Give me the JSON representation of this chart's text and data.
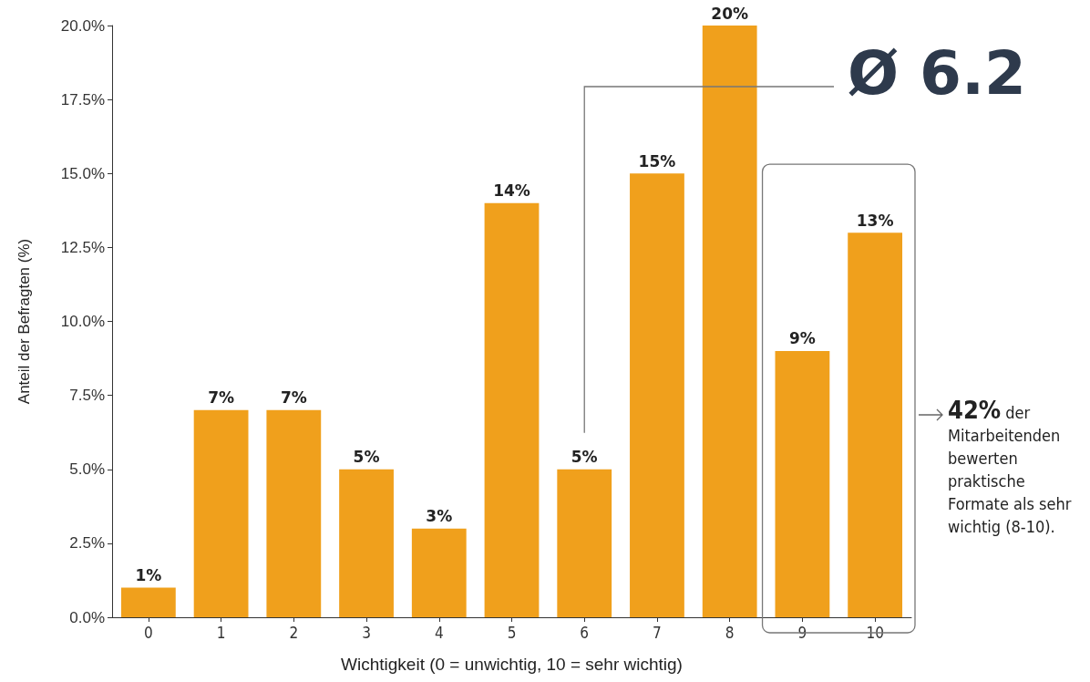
{
  "chart_data": {
    "type": "bar",
    "xlabel": "Wichtigkeit (0 = unwichtig, 10 = sehr wichtig)",
    "ylabel": "Anteil der Befragten (%)",
    "categories": [
      "0",
      "1",
      "2",
      "3",
      "4",
      "5",
      "6",
      "7",
      "8",
      "9",
      "10"
    ],
    "values": [
      1,
      7,
      7,
      5,
      3,
      14,
      5,
      15,
      20,
      9,
      13
    ],
    "value_labels": [
      "1%",
      "7%",
      "7%",
      "5%",
      "3%",
      "14%",
      "5%",
      "15%",
      "20%",
      "9%",
      "13%"
    ],
    "color": "#f0a01c",
    "ylim": [
      0,
      20
    ],
    "yticks": [
      {
        "value": 0,
        "label": "0.0%"
      },
      {
        "value": 2.5,
        "label": "2.5%"
      },
      {
        "value": 5,
        "label": "5.0%"
      },
      {
        "value": 7.5,
        "label": "7.5%"
      },
      {
        "value": 10,
        "label": "10.0%"
      },
      {
        "value": 12.5,
        "label": "12.5%"
      },
      {
        "value": 15,
        "label": "15.0%"
      },
      {
        "value": 17.5,
        "label": "17.5%"
      },
      {
        "value": 20,
        "label": "20.0%"
      }
    ],
    "grid": false,
    "annotations": [
      "Ø 6.2",
      "42% der Mitarbeitenden bewerten praktische Formate als sehr wichtig (8-10)."
    ]
  }
}
